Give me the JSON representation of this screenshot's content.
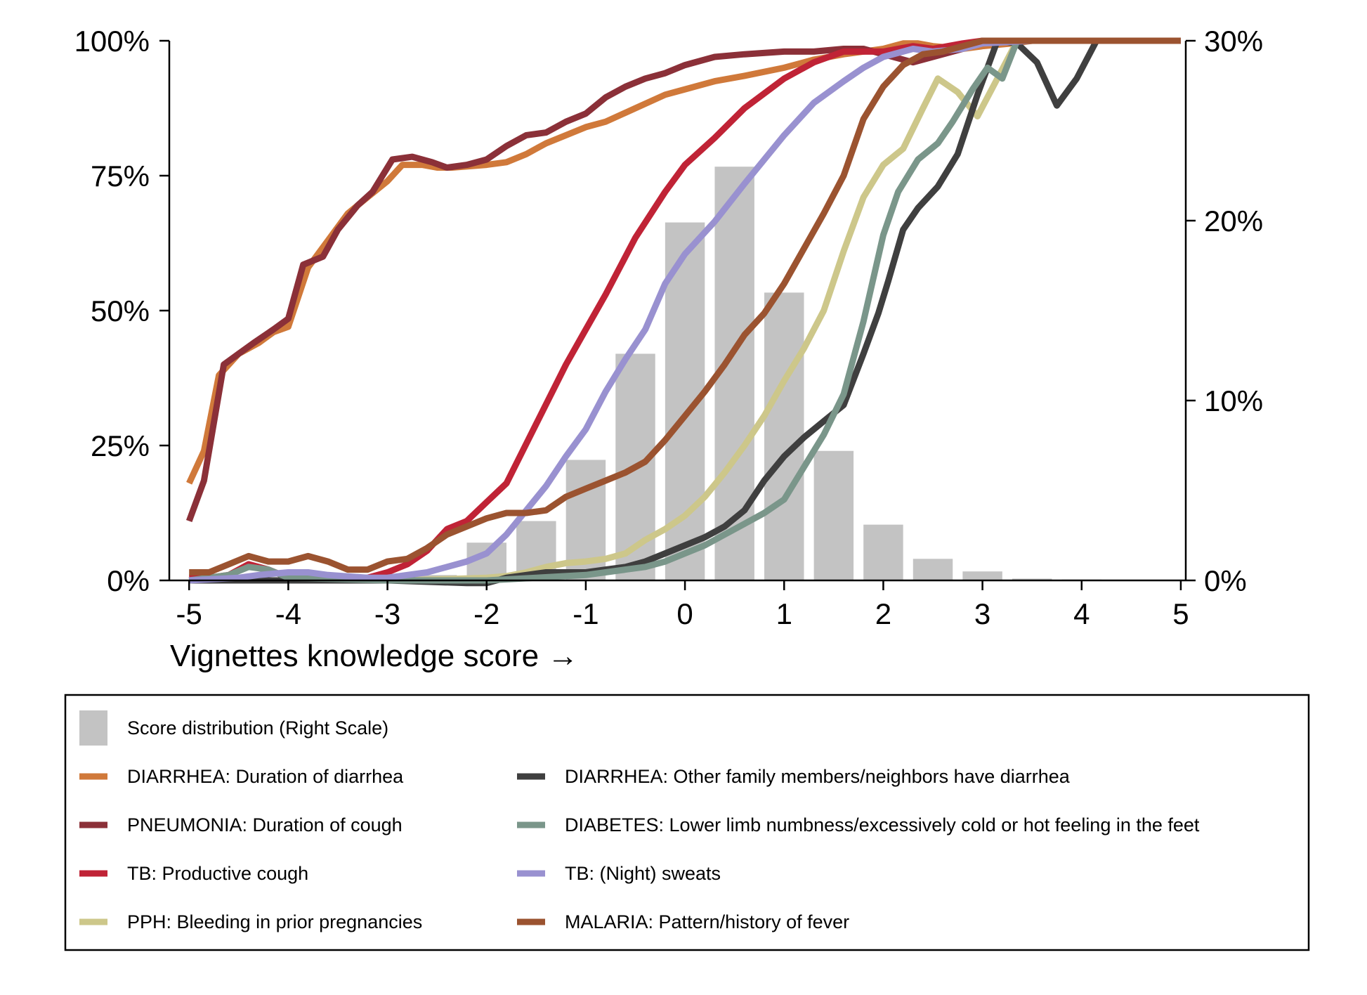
{
  "chart_data": {
    "type": "line",
    "xlabel": "Vignettes knowledge score →",
    "ylabel": "",
    "y2label": "",
    "xlim": [
      -5.2,
      5.05
    ],
    "ylim": [
      0,
      100
    ],
    "y2lim": [
      0,
      30
    ],
    "xticks": [
      -5,
      -4,
      -3,
      -2,
      -1,
      0,
      1,
      2,
      3,
      4,
      5
    ],
    "yticks": [
      0,
      25,
      50,
      75,
      100
    ],
    "yticklabels": [
      "0%",
      "25%",
      "50%",
      "75%",
      "100%"
    ],
    "y2ticks": [
      0,
      10,
      20,
      30
    ],
    "y2ticklabels": [
      "0%",
      "10%",
      "20%",
      "30%"
    ],
    "grid": false,
    "legend_position": "bottom",
    "histogram": {
      "name": "Score distribution (Right Scale)",
      "color": "#c3c3c3",
      "x": [
        -5.0,
        -4.5,
        -4.0,
        -3.5,
        -3.0,
        -2.5,
        -2.0,
        -1.5,
        -1.0,
        -0.5,
        0.0,
        0.5,
        1.0,
        1.5,
        2.0,
        2.5,
        3.0,
        3.5,
        4.0
      ],
      "values": [
        0,
        0,
        0,
        0,
        0.1,
        0.3,
        2.1,
        3.3,
        6.7,
        12.6,
        19.9,
        23.0,
        16.0,
        7.2,
        3.1,
        1.2,
        0.5,
        0.1,
        0.05
      ],
      "bar_width": 0.4
    },
    "series": [
      {
        "name": "DIARRHEA: Duration of diarrhea",
        "color": "#d0793a",
        "x": [
          -5.0,
          -4.85,
          -4.7,
          -4.5,
          -4.3,
          -4.15,
          -4.0,
          -3.8,
          -3.6,
          -3.4,
          -3.2,
          -3.0,
          -2.85,
          -2.65,
          -2.5,
          -2.35,
          -2.0,
          -1.8,
          -1.6,
          -1.4,
          -1.2,
          -1.0,
          -0.8,
          -0.5,
          -0.2,
          0.0,
          0.3,
          0.6,
          1.0,
          1.3,
          1.6,
          2.0,
          2.2,
          2.35,
          2.5,
          2.8,
          3.0,
          3.3,
          3.5,
          4.0,
          5.0
        ],
        "values": [
          18,
          24,
          38,
          42,
          44,
          46,
          47,
          58,
          63,
          68,
          71,
          74,
          77,
          77,
          76.5,
          76.5,
          77,
          77.5,
          79,
          81,
          82.5,
          84,
          85,
          87.5,
          90,
          91,
          92.5,
          93.5,
          95,
          96.5,
          97.5,
          98.5,
          99.5,
          99.5,
          99,
          98.5,
          99,
          99.5,
          100,
          100,
          100
        ]
      },
      {
        "name": "PNEUMONIA: Duration of cough",
        "color": "#8b3038",
        "x": [
          -5.0,
          -4.85,
          -4.65,
          -4.5,
          -4.35,
          -4.15,
          -4.0,
          -3.85,
          -3.65,
          -3.5,
          -3.3,
          -3.15,
          -2.95,
          -2.75,
          -2.55,
          -2.4,
          -2.2,
          -2.0,
          -1.8,
          -1.6,
          -1.4,
          -1.2,
          -1.0,
          -0.8,
          -0.6,
          -0.4,
          -0.2,
          0.0,
          0.3,
          0.6,
          1.0,
          1.3,
          1.6,
          1.8,
          2.0,
          2.3,
          2.5,
          2.8,
          3.0,
          3.5,
          4.0,
          5.0
        ],
        "values": [
          11,
          18.5,
          40,
          42,
          44,
          46.5,
          48.5,
          58.5,
          60,
          65,
          69.5,
          72,
          78,
          78.5,
          77.5,
          76.5,
          77,
          78,
          80.5,
          82.5,
          83,
          85,
          86.5,
          89.5,
          91.5,
          93,
          94,
          95.5,
          97,
          97.5,
          98,
          98,
          98.5,
          98.5,
          97.5,
          96,
          97,
          98.5,
          100,
          100,
          100,
          100
        ]
      },
      {
        "name": "TB: Productive cough",
        "color": "#c02336",
        "x": [
          -5.0,
          -4.8,
          -4.6,
          -4.4,
          -4.2,
          -4.0,
          -3.8,
          -3.6,
          -3.4,
          -3.2,
          -3.0,
          -2.8,
          -2.6,
          -2.4,
          -2.2,
          -2.0,
          -1.8,
          -1.5,
          -1.2,
          -1.0,
          -0.8,
          -0.5,
          -0.2,
          0.0,
          0.3,
          0.6,
          1.0,
          1.3,
          1.6,
          1.8,
          2.0,
          2.3,
          2.5,
          2.8,
          3.0,
          3.3,
          3.5,
          4.0,
          5.0
        ],
        "values": [
          0.5,
          0.5,
          1,
          3,
          2,
          0.5,
          0.5,
          0.5,
          0.5,
          0.5,
          1.5,
          3,
          5.5,
          9.5,
          11,
          14.5,
          18,
          29,
          40,
          46.5,
          53,
          63.5,
          72,
          77,
          82,
          87.5,
          93,
          96,
          98,
          98,
          98,
          99,
          98.5,
          99.5,
          100,
          100,
          100,
          100,
          100
        ]
      },
      {
        "name": "PPH: Bleeding in prior pregnancies",
        "color": "#cdc78a",
        "x": [
          -5.0,
          -4.0,
          -3.0,
          -2.5,
          -2.0,
          -1.8,
          -1.6,
          -1.4,
          -1.2,
          -1.0,
          -0.8,
          -0.6,
          -0.4,
          -0.2,
          0.0,
          0.2,
          0.4,
          0.6,
          0.8,
          1.0,
          1.2,
          1.4,
          1.6,
          1.8,
          2.0,
          2.2,
          2.4,
          2.55,
          2.75,
          2.95,
          3.15,
          3.35,
          3.55,
          4.0,
          5.0
        ],
        "values": [
          0,
          0,
          0,
          0.2,
          0.5,
          0.8,
          1.5,
          2.5,
          3.2,
          3.5,
          4,
          5,
          7.5,
          9.5,
          12,
          15.5,
          20,
          25,
          30.5,
          37,
          43,
          50,
          61,
          71,
          77,
          80,
          87.5,
          93,
          90.5,
          86,
          93,
          100,
          100,
          100,
          100
        ]
      },
      {
        "name": "DIARRHEA: Other family members/neighbors have diarrhea",
        "color": "#3f3f3f",
        "x": [
          -5.0,
          -3.0,
          -2.2,
          -2.0,
          -1.8,
          -1.6,
          -1.4,
          -1.2,
          -1.0,
          -0.8,
          -0.6,
          -0.4,
          -0.2,
          0.0,
          0.2,
          0.4,
          0.6,
          0.8,
          1.0,
          1.2,
          1.4,
          1.6,
          1.8,
          1.95,
          2.05,
          2.2,
          2.35,
          2.55,
          2.75,
          2.95,
          3.05,
          3.15,
          3.35,
          3.55,
          3.75,
          3.95,
          4.15,
          4.4,
          5.0
        ],
        "values": [
          0,
          0,
          -0.5,
          -0.5,
          0.5,
          1,
          1.5,
          1.5,
          1.5,
          2,
          2.5,
          3.5,
          5,
          6.5,
          8,
          10,
          13,
          18.5,
          23,
          26.5,
          29.5,
          32.5,
          42,
          49.5,
          55.5,
          65,
          69,
          73,
          79,
          90,
          95,
          100,
          99.5,
          96,
          88,
          93,
          100,
          100,
          100
        ]
      },
      {
        "name": "DIABETES: Lower limb numbness/excessively cold or hot feeling in the feet",
        "color": "#7a968a",
        "x": [
          -5.0,
          -4.6,
          -4.4,
          -4.2,
          -4.0,
          -3.0,
          -2.0,
          -1.5,
          -1.0,
          -0.6,
          -0.4,
          -0.2,
          0.0,
          0.2,
          0.4,
          0.6,
          0.8,
          1.0,
          1.2,
          1.4,
          1.6,
          1.8,
          2.0,
          2.15,
          2.35,
          2.55,
          2.7,
          2.9,
          3.05,
          3.2,
          3.35,
          3.55,
          3.75,
          4.0,
          5.0
        ],
        "values": [
          0,
          1,
          2.5,
          2,
          0.5,
          0,
          0,
          0.5,
          1,
          2,
          2.5,
          3.5,
          5,
          6.5,
          8.5,
          10.5,
          12.5,
          15,
          21,
          27,
          34.5,
          48,
          64,
          72,
          78,
          81,
          85,
          91,
          95,
          93,
          100,
          100,
          100,
          100,
          100
        ]
      },
      {
        "name": "TB: (Night) sweats",
        "color": "#9991d0",
        "x": [
          -5.0,
          -4.5,
          -4.3,
          -4.0,
          -3.8,
          -3.6,
          -3.2,
          -3.0,
          -2.8,
          -2.6,
          -2.4,
          -2.2,
          -2.0,
          -1.8,
          -1.6,
          -1.4,
          -1.2,
          -1.0,
          -0.8,
          -0.6,
          -0.4,
          -0.2,
          0.0,
          0.3,
          0.6,
          1.0,
          1.3,
          1.6,
          1.8,
          2.0,
          2.3,
          2.5,
          2.8,
          3.0,
          3.5,
          4.0,
          5.0
        ],
        "values": [
          0,
          0.5,
          1,
          1.5,
          1.5,
          1,
          0.5,
          0.5,
          1,
          1.5,
          2.5,
          3.5,
          5,
          8.5,
          13,
          17.5,
          23,
          28,
          35,
          41,
          46.5,
          55,
          60.5,
          66.5,
          73.5,
          82.5,
          88.5,
          92.5,
          95,
          97,
          98.5,
          98,
          98.5,
          99.5,
          100,
          100,
          100
        ]
      },
      {
        "name": "MALARIA: Pattern/history of fever",
        "color": "#9b5330",
        "x": [
          -5.0,
          -4.8,
          -4.6,
          -4.4,
          -4.2,
          -4.0,
          -3.8,
          -3.6,
          -3.4,
          -3.2,
          -3.0,
          -2.8,
          -2.6,
          -2.4,
          -2.2,
          -2.0,
          -1.8,
          -1.6,
          -1.4,
          -1.2,
          -1.0,
          -0.8,
          -0.6,
          -0.4,
          -0.2,
          0.0,
          0.2,
          0.4,
          0.6,
          0.8,
          1.0,
          1.2,
          1.4,
          1.6,
          1.8,
          2.0,
          2.2,
          2.4,
          2.6,
          2.8,
          3.0,
          3.5,
          4.0,
          5.0
        ],
        "values": [
          1.5,
          1.5,
          3,
          4.5,
          3.5,
          3.5,
          4.5,
          3.5,
          2,
          2,
          3.5,
          4,
          6,
          8.5,
          10,
          11.5,
          12.5,
          12.5,
          13,
          15.5,
          17,
          18.5,
          20,
          22,
          26,
          30.5,
          35,
          40,
          45.5,
          49.5,
          55,
          61.5,
          68,
          75,
          85.5,
          91.5,
          95.5,
          97.5,
          98,
          99,
          100,
          100,
          100,
          100
        ]
      }
    ],
    "legend_layout": {
      "left_column": [
        "histogram",
        0,
        1,
        2,
        3
      ],
      "right_column": [
        4,
        5,
        6,
        7
      ]
    }
  }
}
